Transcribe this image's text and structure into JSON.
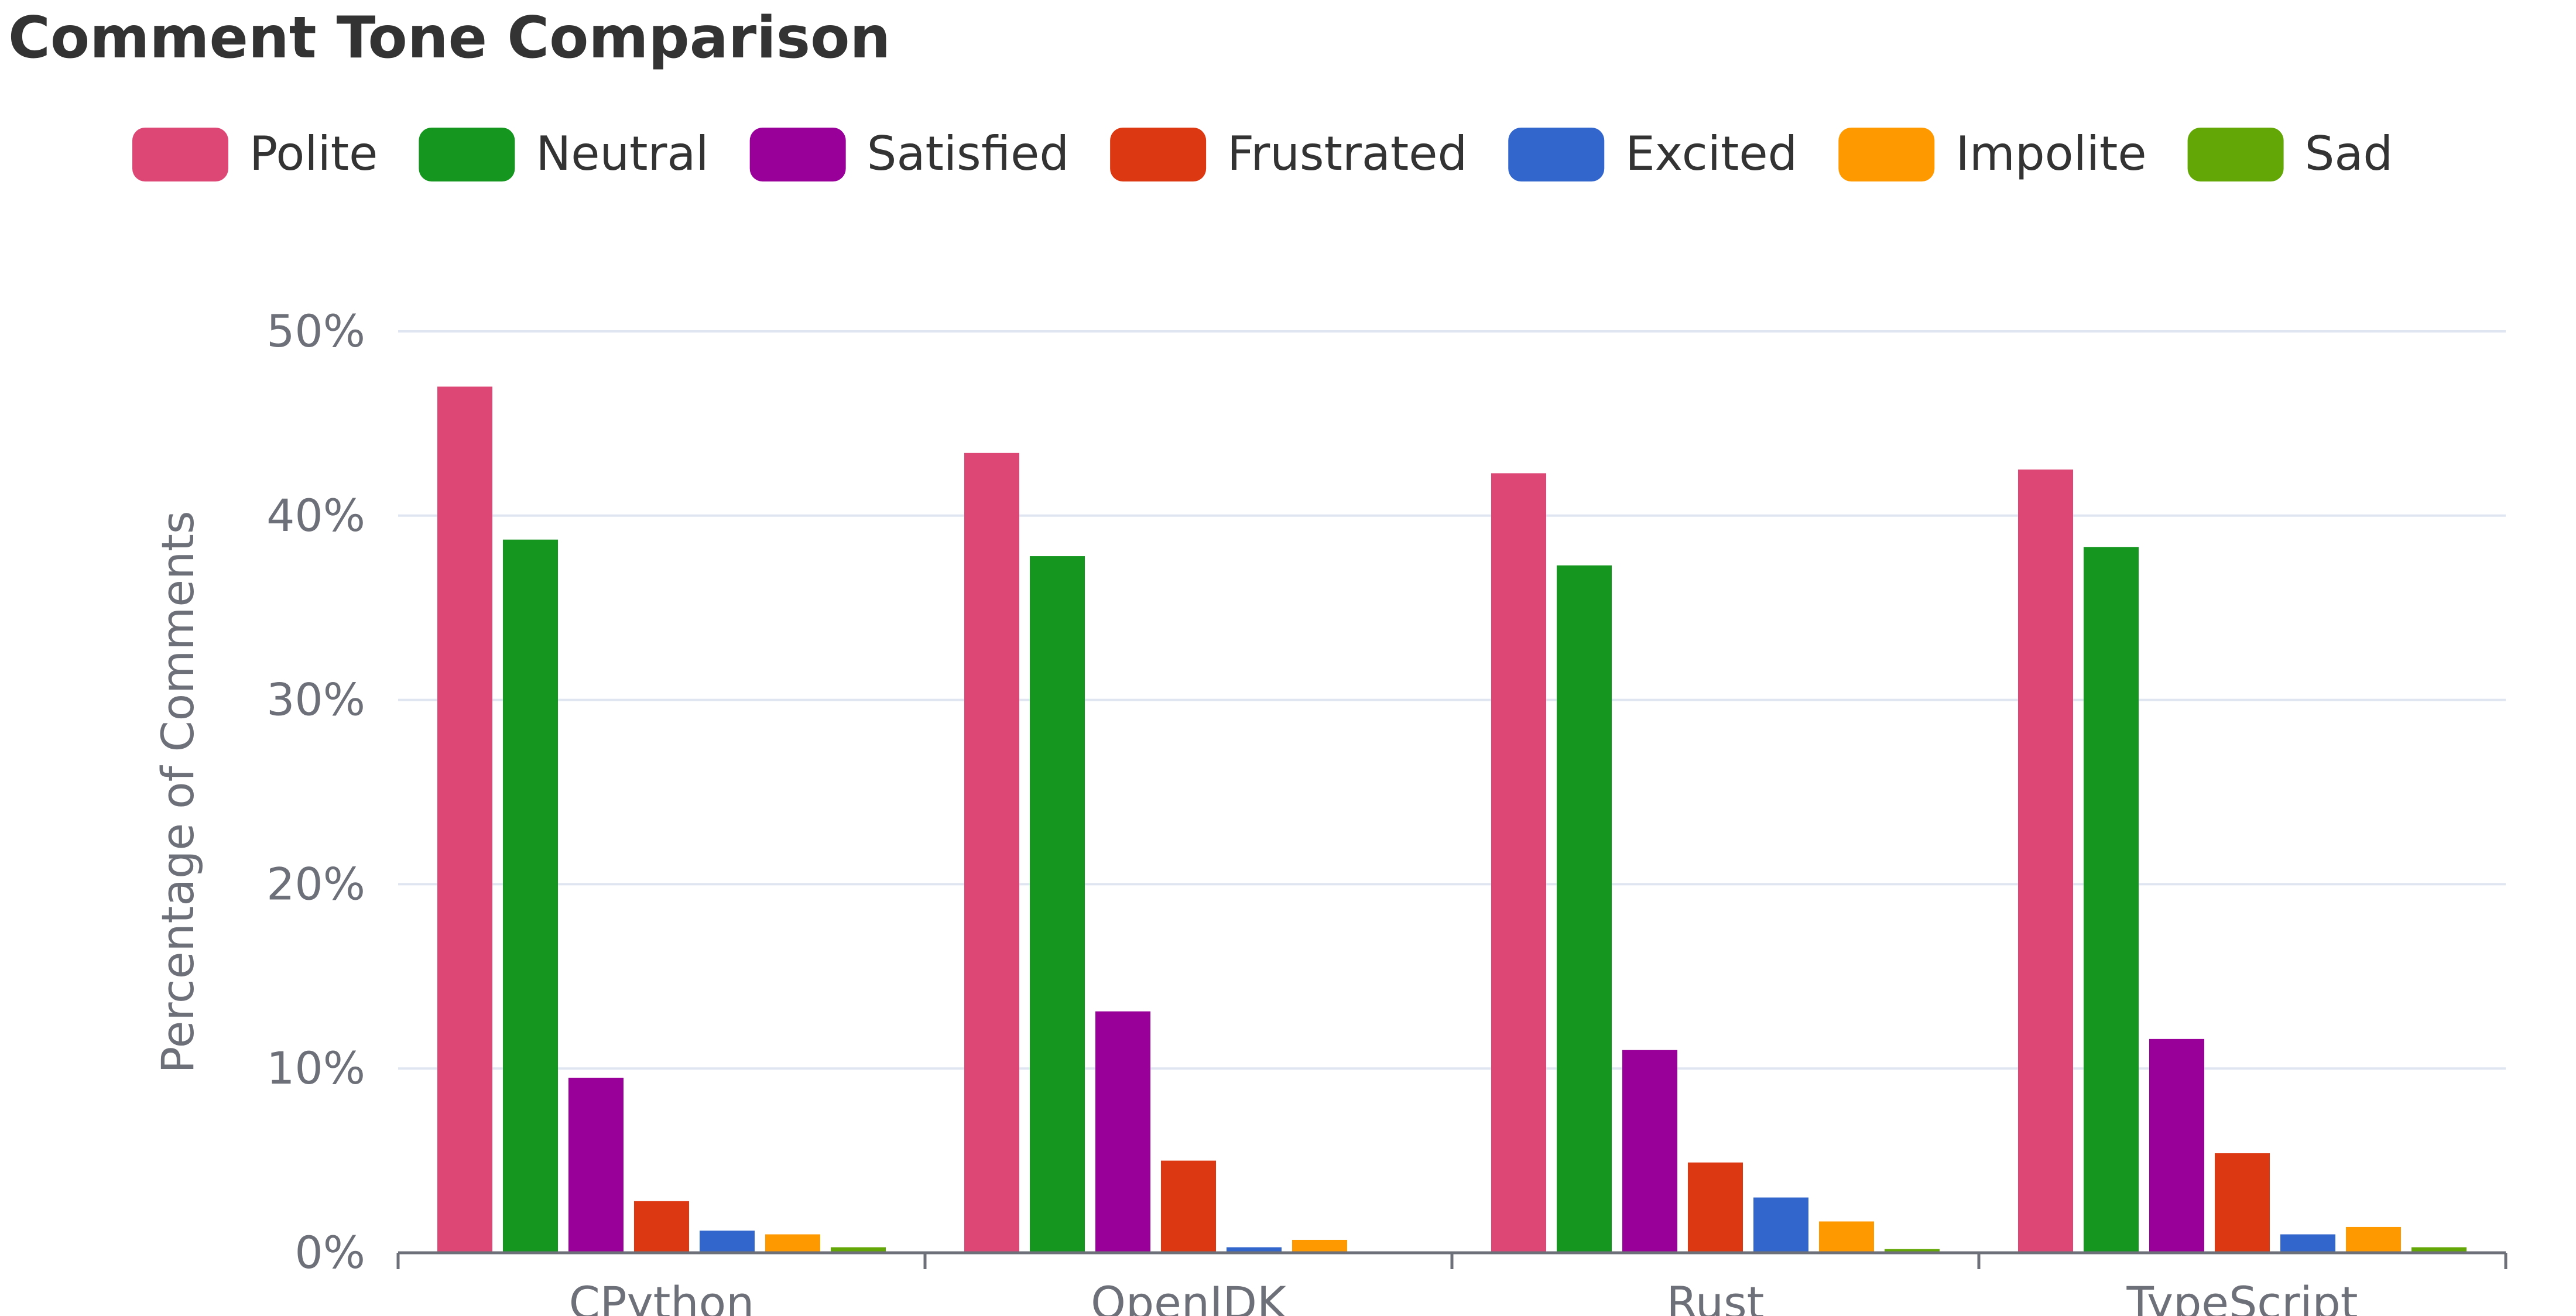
{
  "chart_data": {
    "type": "bar",
    "title": "Comment Tone Comparison",
    "xlabel": "",
    "ylabel": "Percentage of Comments",
    "ylim": [
      0,
      50
    ],
    "ytick_values": [
      0,
      10,
      20,
      30,
      40,
      50
    ],
    "ytick_labels": [
      "0%",
      "10%",
      "20%",
      "30%",
      "40%",
      "50%"
    ],
    "grid": true,
    "legend_position": "top",
    "categories": [
      "CPython",
      "OpenJDK",
      "Rust",
      "TypeScript"
    ],
    "series": [
      {
        "name": "Polite",
        "color": "#dd4776",
        "values": [
          47.0,
          43.4,
          42.3,
          42.5
        ]
      },
      {
        "name": "Neutral",
        "color": "#14961f",
        "values": [
          38.7,
          37.8,
          37.3,
          38.3
        ]
      },
      {
        "name": "Satisfied",
        "color": "#990099",
        "values": [
          9.5,
          13.1,
          11.0,
          11.6
        ]
      },
      {
        "name": "Frustrated",
        "color": "#dc3913",
        "values": [
          2.8,
          5.0,
          4.9,
          5.4
        ]
      },
      {
        "name": "Excited",
        "color": "#3366cc",
        "values": [
          1.2,
          0.3,
          3.0,
          1.0
        ]
      },
      {
        "name": "Impolite",
        "color": "#ff9900",
        "values": [
          1.0,
          0.7,
          1.7,
          1.4
        ]
      },
      {
        "name": "Sad",
        "color": "#63a706",
        "values": [
          0.3,
          0.0,
          0.2,
          0.3
        ]
      }
    ]
  }
}
